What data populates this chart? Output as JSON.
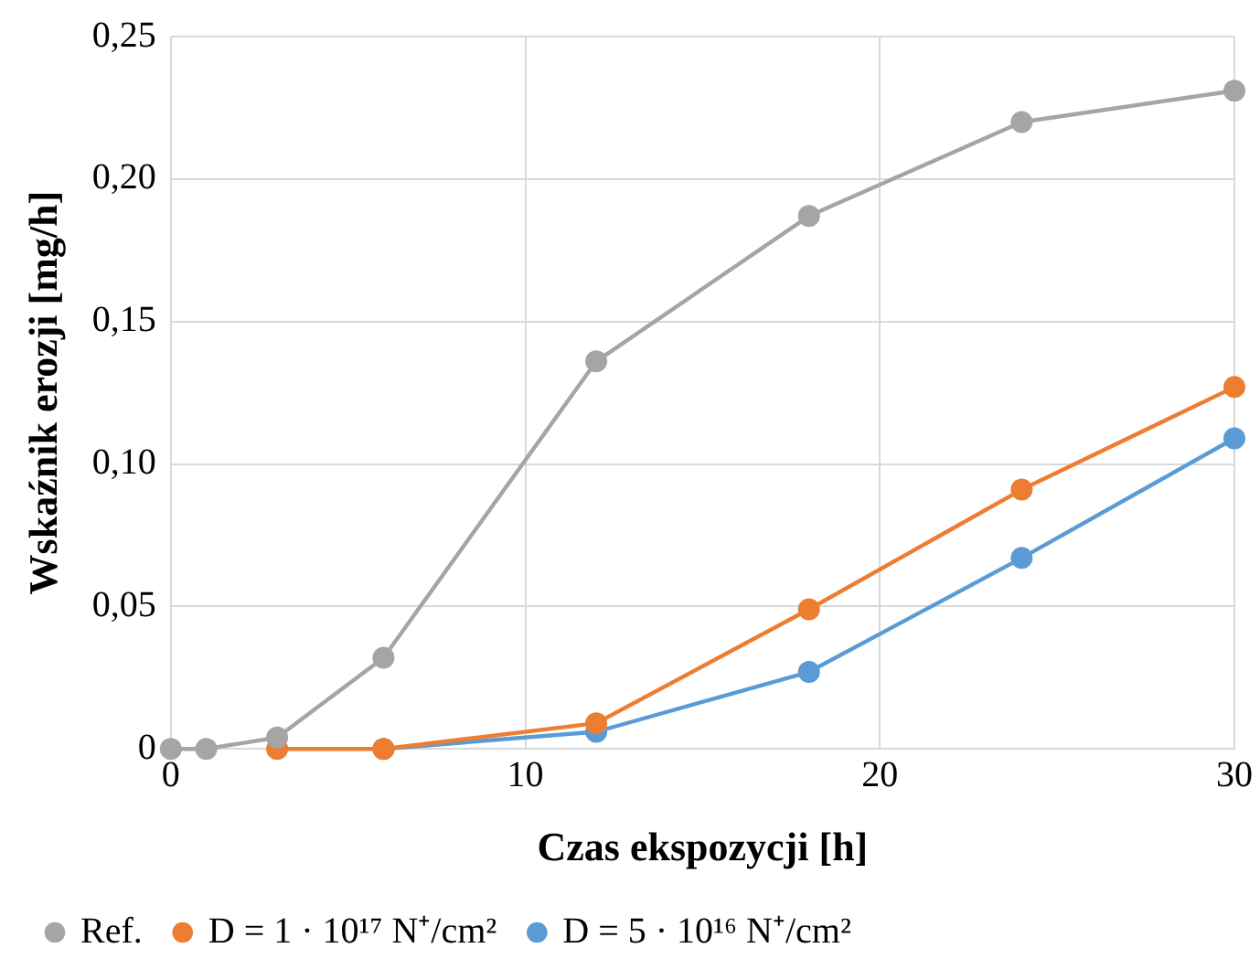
{
  "chart_data": {
    "type": "line",
    "xlabel": "Czas ekspozycji [h]",
    "ylabel": "Wskaźnik erozji [mg/h]",
    "x": [
      0,
      1,
      3,
      6,
      12,
      18,
      24,
      30
    ],
    "series": [
      {
        "name": "D = 5 · 10¹⁶ N⁺/cm²",
        "color": "#5b9bd5",
        "values": [
          null,
          null,
          null,
          0,
          0.006,
          0.027,
          0.067,
          0.109
        ]
      },
      {
        "name": "D = 1 · 10¹⁷ N⁺/cm²",
        "color": "#ed7d31",
        "values": [
          null,
          null,
          0,
          0,
          0.009,
          0.049,
          0.091,
          0.127
        ]
      },
      {
        "name": "Ref.",
        "color": "#a5a5a5",
        "values": [
          0,
          0,
          0.004,
          0.032,
          0.136,
          0.187,
          0.22,
          0.231
        ]
      }
    ],
    "xlim": [
      0,
      30
    ],
    "xticks": [
      0,
      10,
      20,
      30
    ],
    "ylim": [
      0,
      0.25
    ],
    "yticks": [
      {
        "value": 0,
        "label": "0"
      },
      {
        "value": 0.05,
        "label": "0,05"
      },
      {
        "value": 0.1,
        "label": "0,10"
      },
      {
        "value": 0.15,
        "label": "0,15"
      },
      {
        "value": 0.2,
        "label": "0,20"
      },
      {
        "value": 0.25,
        "label": "0,25"
      }
    ],
    "grid": true,
    "legend": "bottom",
    "marker": "circle",
    "line_style": "solid"
  }
}
